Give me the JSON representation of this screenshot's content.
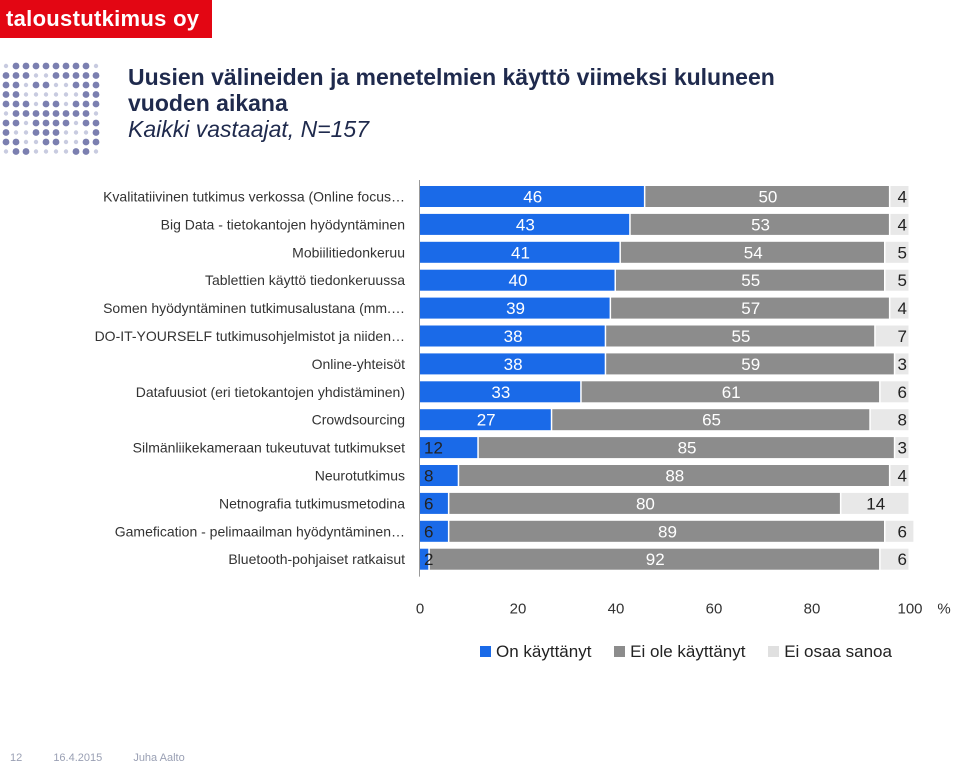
{
  "header": {
    "brand": "taloustutkimus oy",
    "title_line1": "Uusien välineiden ja menetelmien käyttö viimeksi kuluneen",
    "title_line2": "vuoden aikana",
    "subtitle": "Kaikki vastaajat, N=157"
  },
  "footer": {
    "page": "12",
    "date": "16.4.2015",
    "author": "Juha Aalto"
  },
  "colors": {
    "brand": "#e30613",
    "used": "#1a6ae8",
    "not_used": "#8c8c8c",
    "dont_know": "#e8e8e8"
  },
  "chart_data": {
    "type": "bar",
    "orientation": "horizontal",
    "stacked": true,
    "categories": [
      "Kvalitatiivinen tutkimus verkossa (Online focus…",
      "Big Data - tietokantojen hyödyntäminen",
      "Mobiilitiedonkeruu",
      "Tablettien käyttö tiedonkeruussa",
      "Somen hyödyntäminen tutkimusalustana (mm.…",
      "DO-IT-YOURSELF tutkimusohjelmistot ja niiden…",
      "Online-yhteisöt",
      "Datafuusiot (eri tietokantojen yhdistäminen)",
      "Crowdsourcing",
      "Silmänliikekameraan tukeutuvat tutkimukset",
      "Neurotutkimus",
      "Netnografia tutkimusmetodina",
      "Gamefication - pelimaailman hyödyntäminen…",
      "Bluetooth-pohjaiset ratkaisut"
    ],
    "series": [
      {
        "name": "On käyttänyt",
        "color": "#1a6ae8",
        "values": [
          46,
          43,
          41,
          40,
          39,
          38,
          38,
          33,
          27,
          12,
          8,
          6,
          6,
          2
        ]
      },
      {
        "name": "Ei ole käyttänyt",
        "color": "#8c8c8c",
        "values": [
          50,
          53,
          54,
          55,
          57,
          55,
          59,
          61,
          65,
          85,
          88,
          80,
          89,
          92
        ]
      },
      {
        "name": "Ei osaa sanoa",
        "color": "#e8e8e8",
        "values": [
          4,
          4,
          5,
          5,
          4,
          7,
          3,
          6,
          8,
          3,
          4,
          14,
          6,
          6
        ]
      }
    ],
    "xlim": [
      0,
      100
    ],
    "xticks": [
      "0",
      "20",
      "40",
      "60",
      "80",
      "100"
    ],
    "xunit": "%",
    "legend_position": "bottom"
  }
}
